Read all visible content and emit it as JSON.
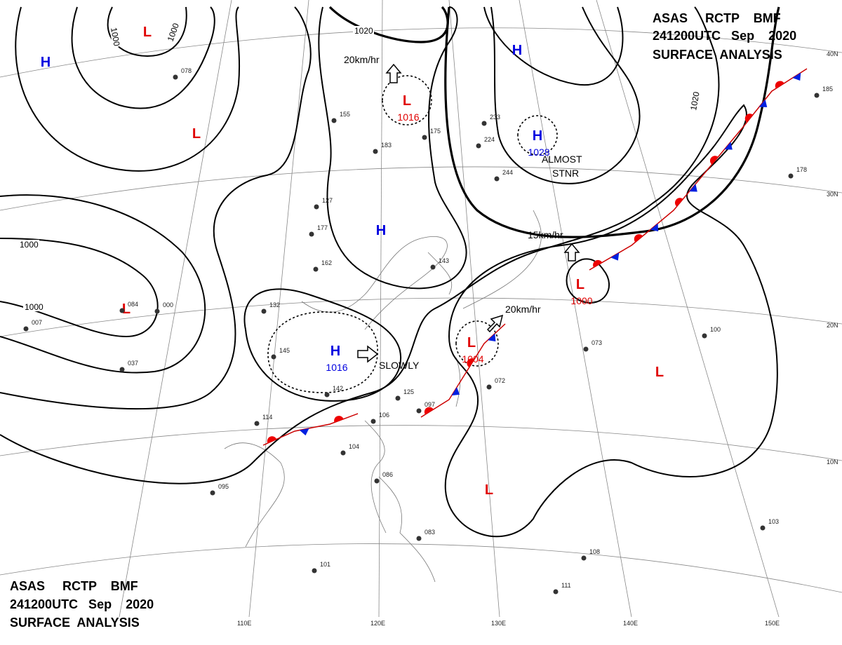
{
  "header": {
    "lines": [
      "ASAS     RCTP    BMF",
      "241200UTC   Sep    2020",
      "SURFACE  ANALYSIS"
    ]
  },
  "footer": {
    "lines": [
      "ASAS     RCTP    BMF",
      "241200UTC   Sep    2020",
      "SURFACE  ANALYSIS"
    ]
  },
  "centers": [
    {
      "kind": "L",
      "color": "#e00000"
    },
    {
      "kind": "H",
      "color": "#0000e0"
    },
    {
      "kind": "L",
      "pressure": "1016",
      "color": "#e00000"
    },
    {
      "kind": "H",
      "color": "#0000e0"
    },
    {
      "kind": "H",
      "pressure": "1028",
      "color": "#0000e0"
    },
    {
      "kind": "L",
      "color": "#e00000"
    },
    {
      "kind": "H",
      "color": "#0000e0"
    },
    {
      "kind": "L",
      "color": "#e00000"
    },
    {
      "kind": "H",
      "pressure": "1016",
      "color": "#0000e0"
    },
    {
      "kind": "L",
      "pressure": "1000",
      "color": "#e00000"
    },
    {
      "kind": "L",
      "pressure": "1004",
      "color": "#e00000"
    },
    {
      "kind": "L",
      "color": "#e00000"
    },
    {
      "kind": "L",
      "color": "#e00000"
    }
  ],
  "isobar_labels": [
    "1000",
    "1000",
    "1020",
    "1020",
    "1000",
    "1000"
  ],
  "annotations": [
    "20km/hr",
    "15km/hr",
    "20km/hr",
    "SLOWLY",
    "ALMOST",
    "STNR"
  ],
  "latitudes": [
    "40N",
    "30N",
    "20N",
    "10N"
  ],
  "longitudes": [
    "110E",
    "120E",
    "130E",
    "140E",
    "150E"
  ],
  "stations": [
    "145",
    "142",
    "177",
    "183",
    "175",
    "155",
    "127",
    "162",
    "132",
    "244",
    "233",
    "224",
    "143",
    "125",
    "106",
    "104",
    "097",
    "072",
    "073",
    "100",
    "114",
    "095",
    "086",
    "083",
    "103",
    "101",
    "108",
    "111",
    "178",
    "185",
    "078",
    "037",
    "007",
    "084",
    "000"
  ]
}
